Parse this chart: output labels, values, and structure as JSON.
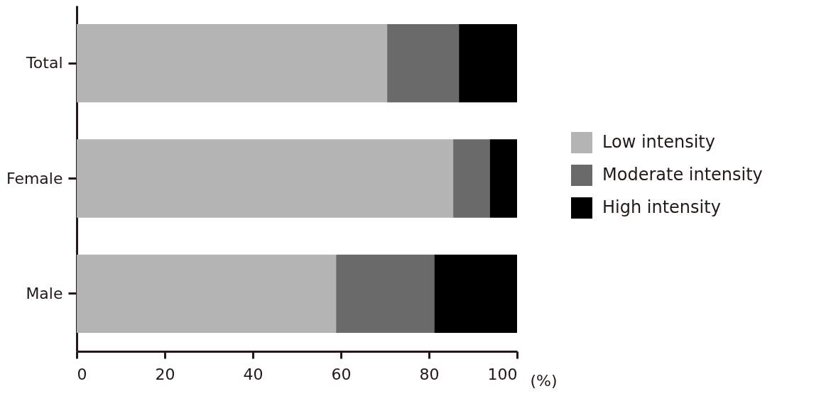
{
  "chart_data": {
    "type": "bar",
    "orientation": "horizontal",
    "stacked": true,
    "categories": [
      "Total",
      "Female",
      "Male"
    ],
    "xlabel": "(%)",
    "xlim": [
      0,
      100
    ],
    "xticks": [
      0,
      20,
      40,
      60,
      80,
      100
    ],
    "legend": "right",
    "series": [
      {
        "name": "Low intensity",
        "color": "#b4b4b4",
        "values": [
          70.5,
          85.5,
          58.9
        ]
      },
      {
        "name": "Moderate intensity",
        "color": "#6a6a6a",
        "values": [
          16.3,
          8.3,
          22.3
        ]
      },
      {
        "name": "High intensity",
        "color": "#000000",
        "values": [
          13.2,
          6.2,
          18.8
        ]
      }
    ]
  }
}
